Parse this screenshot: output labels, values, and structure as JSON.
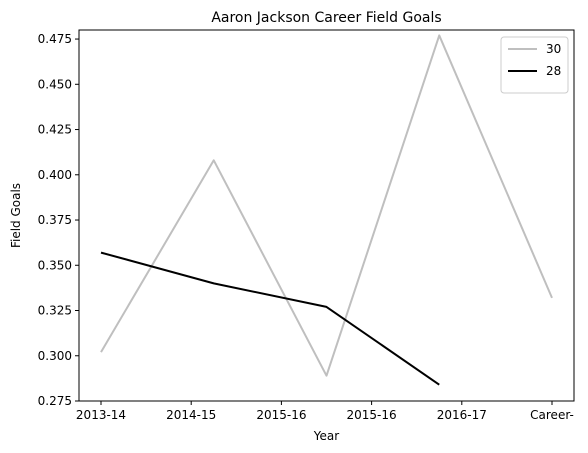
{
  "chart_data": {
    "type": "line",
    "title": "Aaron Jackson  Career Field Goals",
    "xlabel": "Year",
    "ylabel": "Field Goals",
    "x_tick_labels": [
      "2013-14",
      "2014-15",
      "2015-16",
      "2015-16",
      "2016-17",
      "Career-"
    ],
    "x_range": [
      0,
      5
    ],
    "ylim": [
      0.275,
      0.48
    ],
    "y_ticks": [
      0.275,
      0.3,
      0.325,
      0.35,
      0.375,
      0.4,
      0.425,
      0.45,
      0.475
    ],
    "y_tick_labels": [
      "0.275",
      "0.300",
      "0.325",
      "0.350",
      "0.375",
      "0.400",
      "0.425",
      "0.450",
      "0.475"
    ],
    "grid": false,
    "legend_position": "top-right",
    "series": [
      {
        "name": "30",
        "color": "#bfbfbf",
        "x": [
          0,
          1.25,
          2.5,
          3.75,
          5
        ],
        "values": [
          0.302,
          0.408,
          0.289,
          0.477,
          0.332
        ]
      },
      {
        "name": "28",
        "color": "#000000",
        "x": [
          0,
          1.25,
          2.5,
          3.75
        ],
        "values": [
          0.357,
          0.34,
          0.327,
          0.284
        ]
      }
    ]
  }
}
